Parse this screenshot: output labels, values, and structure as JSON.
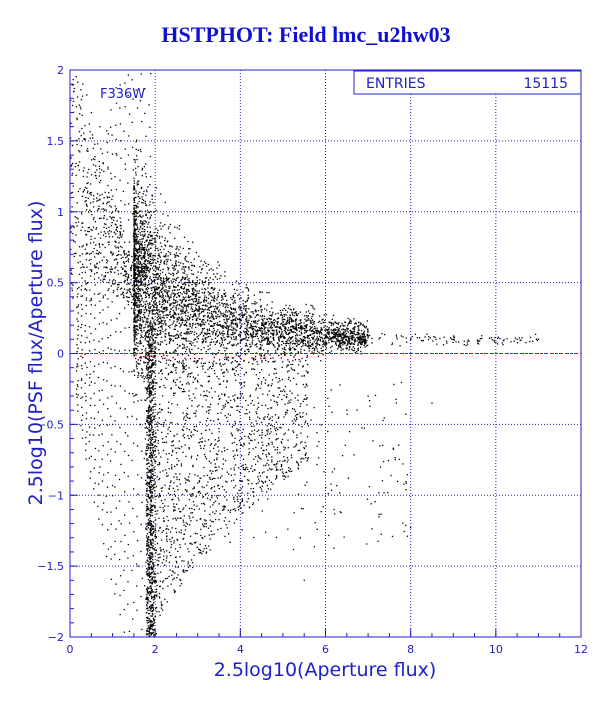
{
  "title": "HSTPHOT: Field lmc_u2hw03",
  "stats_box": {
    "label": "ENTRIES",
    "value": "15115"
  },
  "filter_label": "F336W",
  "colors": {
    "frame": "#2020c8",
    "grid": "#2020c8",
    "points": "#000000",
    "zero_line": "#e00000",
    "title": "#1010d0"
  },
  "chart_data": {
    "type": "scatter",
    "title": "HSTPHOT: Field lmc_u2hw03",
    "xlabel": "2.5log10(Aperture flux)",
    "ylabel": "2.5log10(PSF flux/Aperture flux)",
    "xlim": [
      0,
      12
    ],
    "ylim": [
      -2,
      2
    ],
    "x_ticks": [
      0,
      2,
      4,
      6,
      8,
      10,
      12
    ],
    "y_ticks": [
      -2,
      -1.5,
      -1,
      -0.5,
      0,
      0.5,
      1,
      1.5,
      2
    ],
    "grid": true,
    "reference_line": {
      "y": 0,
      "style": "dashed",
      "color": "#e00000"
    },
    "entries": 15115,
    "series": [
      {
        "values": [
          [
            0.3,
            1.9
          ],
          [
            0.5,
            1.7
          ],
          [
            0.7,
            1.6
          ],
          [
            0.9,
            1.55
          ],
          [
            1.1,
            1.4
          ],
          [
            1.3,
            1.3
          ],
          [
            0.4,
            1.2
          ],
          [
            0.8,
            1.1
          ],
          [
            1.0,
            1.0
          ],
          [
            1.2,
            0.9
          ],
          [
            1.5,
            0.7
          ],
          [
            1.7,
            0.55
          ],
          [
            2.0,
            0.45
          ],
          [
            2.3,
            0.4
          ],
          [
            2.6,
            0.3
          ],
          [
            3.0,
            0.25
          ],
          [
            3.5,
            0.2
          ],
          [
            4.0,
            0.15
          ],
          [
            4.5,
            0.12
          ],
          [
            5.0,
            0.12
          ],
          [
            5.5,
            0.12
          ],
          [
            6.0,
            0.12
          ],
          [
            7.0,
            0.12
          ],
          [
            8.0,
            0.1
          ],
          [
            9.0,
            0.1
          ],
          [
            10.0,
            0.08
          ],
          [
            10.5,
            0.1
          ],
          [
            11.0,
            0.1
          ],
          [
            2.0,
            0.0
          ],
          [
            2.5,
            -0.1
          ],
          [
            3.0,
            -0.2
          ],
          [
            2.2,
            -0.5
          ],
          [
            2.5,
            -0.7
          ],
          [
            2.8,
            -0.9
          ],
          [
            2.1,
            -1.0
          ],
          [
            2.4,
            -1.3
          ],
          [
            2.6,
            -1.6
          ],
          [
            1.8,
            -1.8
          ],
          [
            3.5,
            -0.8
          ],
          [
            4.5,
            -0.9
          ],
          [
            5.0,
            -0.5
          ],
          [
            6.5,
            -0.4
          ],
          [
            7.0,
            -0.3
          ],
          [
            8.5,
            -0.35
          ],
          [
            6.2,
            -1.1
          ],
          [
            5.5,
            -1.6
          ],
          [
            1.0,
            -0.5
          ],
          [
            1.5,
            -0.3
          ],
          [
            0.5,
            -0.2
          ],
          [
            1.2,
            -1.2
          ],
          [
            1.6,
            -1.5
          ],
          [
            1.9,
            -1.9
          ]
        ]
      }
    ]
  }
}
